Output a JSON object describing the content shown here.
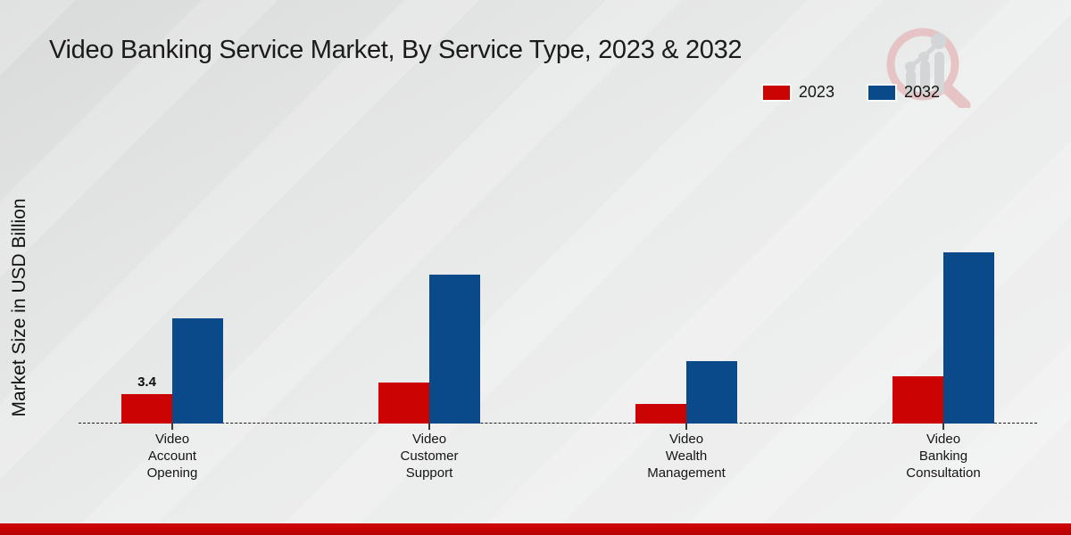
{
  "page": {
    "title": "Video Banking Service Market, By Service Type, 2023 & 2032",
    "ylabel": "Market Size in USD Billion",
    "accent_color": "#c10505",
    "watermark_icon": "magnifier-bar-chart-logo"
  },
  "chart_data": {
    "type": "bar",
    "title": "Video Banking Service Market, By Service Type, 2023 & 2032",
    "xlabel": "",
    "ylabel": "Market Size in USD Billion",
    "categories": [
      "Video Account Opening",
      "Video Customer Support",
      "Video Wealth Management",
      "Video Banking Consultation"
    ],
    "series": [
      {
        "name": "2023",
        "color": "#cc0303",
        "values": [
          3.4,
          4.7,
          2.3,
          5.5
        ],
        "data_labels": [
          "3.4",
          "",
          "",
          ""
        ]
      },
      {
        "name": "2032",
        "color": "#0a4a8b",
        "values": [
          12.2,
          17.2,
          7.2,
          19.8
        ],
        "data_labels": [
          "",
          "",
          "",
          ""
        ]
      }
    ],
    "ylim": [
      0,
      20
    ],
    "grid": false,
    "legend_position": "top-right",
    "axis_style": "dashed-baseline-only",
    "y_ticks_visible": false
  }
}
